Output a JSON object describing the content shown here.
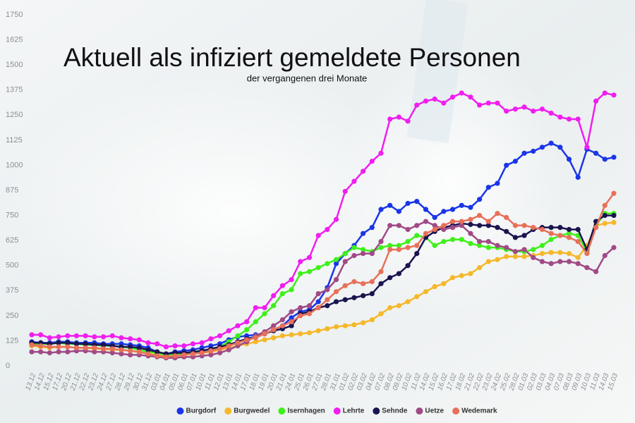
{
  "chart_data": {
    "type": "line",
    "title": "Aktuell als infiziert gemeldete Personen",
    "subtitle": "der vergangenen drei Monate",
    "categories": [
      "13.12",
      "14.12",
      "15.12",
      "17.12",
      "20.12",
      "21.12",
      "22.12",
      "23.12",
      "24.12",
      "27.12",
      "28.12",
      "29.12",
      "30.12",
      "31.12",
      "03.01",
      "04.01",
      "05.01",
      "06.01",
      "07.01",
      "10.01",
      "11.01",
      "12.01",
      "13.01",
      "14.01",
      "17.01",
      "18.01",
      "19.01",
      "20.01",
      "21.01",
      "24.01",
      "25.01",
      "26.01",
      "27.01",
      "28.01",
      "31.01",
      "01.02",
      "02.02",
      "03.02",
      "04.02",
      "07.02",
      "08.02",
      "09.02",
      "10.02",
      "11.02",
      "14.02",
      "15.02",
      "16.02",
      "17.02",
      "18.02",
      "21.02",
      "22.02",
      "23.02",
      "24.02",
      "25.02",
      "28.02",
      "01.03",
      "02.03",
      "03.03",
      "04.03",
      "07.03",
      "08.03",
      "09.03",
      "10.03",
      "11.03",
      "14.03",
      "15.03"
    ],
    "series": [
      {
        "name": "Burgdorf",
        "color": "#1a35e8",
        "values": [
          120,
          115,
          115,
          120,
          120,
          115,
          115,
          115,
          110,
          110,
          110,
          105,
          100,
          90,
          70,
          60,
          70,
          75,
          80,
          90,
          100,
          110,
          130,
          145,
          150,
          155,
          160,
          180,
          200,
          240,
          270,
          280,
          320,
          390,
          510,
          560,
          600,
          660,
          690,
          780,
          800,
          770,
          810,
          820,
          780,
          740,
          770,
          780,
          800,
          790,
          830,
          890,
          910,
          1000,
          1020,
          1060,
          1070,
          1090,
          1110,
          1090,
          1030,
          940,
          1080,
          1060,
          1030,
          1040
        ]
      },
      {
        "name": "Burgwedel",
        "color": "#f5b82a",
        "values": [
          100,
          95,
          90,
          95,
          95,
          90,
          90,
          85,
          85,
          80,
          80,
          75,
          70,
          60,
          55,
          50,
          55,
          55,
          60,
          65,
          70,
          80,
          90,
          100,
          110,
          120,
          130,
          140,
          150,
          155,
          160,
          165,
          175,
          185,
          195,
          200,
          205,
          215,
          230,
          260,
          290,
          300,
          320,
          345,
          370,
          395,
          410,
          440,
          450,
          460,
          490,
          520,
          530,
          545,
          545,
          545,
          550,
          560,
          565,
          565,
          560,
          540,
          600,
          700,
          710,
          715
        ]
      },
      {
        "name": "Isernhagen",
        "color": "#3ef01a",
        "values": [
          110,
          110,
          110,
          115,
          110,
          110,
          105,
          105,
          100,
          100,
          95,
          90,
          80,
          70,
          65,
          55,
          60,
          60,
          65,
          70,
          80,
          95,
          120,
          150,
          180,
          220,
          260,
          300,
          360,
          380,
          460,
          470,
          490,
          510,
          530,
          560,
          590,
          580,
          570,
          590,
          600,
          600,
          620,
          650,
          640,
          600,
          620,
          630,
          630,
          610,
          600,
          590,
          590,
          580,
          570,
          570,
          580,
          600,
          630,
          650,
          660,
          650,
          570,
          700,
          760,
          760
        ]
      },
      {
        "name": "Lehrte",
        "color": "#f01ef0",
        "values": [
          155,
          155,
          140,
          145,
          150,
          150,
          150,
          145,
          145,
          150,
          140,
          135,
          130,
          115,
          110,
          95,
          100,
          100,
          110,
          115,
          135,
          150,
          175,
          200,
          220,
          290,
          290,
          350,
          400,
          430,
          520,
          540,
          650,
          680,
          730,
          870,
          920,
          970,
          1020,
          1060,
          1230,
          1240,
          1220,
          1300,
          1320,
          1330,
          1310,
          1340,
          1360,
          1340,
          1300,
          1310,
          1310,
          1270,
          1280,
          1290,
          1270,
          1280,
          1260,
          1240,
          1230,
          1230,
          1090,
          1320,
          1360,
          1350
        ]
      },
      {
        "name": "Sehnde",
        "color": "#1a1450",
        "values": [
          115,
          115,
          110,
          115,
          115,
          110,
          110,
          105,
          105,
          100,
          95,
          95,
          90,
          80,
          70,
          60,
          65,
          65,
          70,
          75,
          85,
          95,
          105,
          120,
          135,
          145,
          160,
          175,
          185,
          200,
          260,
          270,
          290,
          300,
          320,
          330,
          340,
          350,
          360,
          410,
          440,
          460,
          500,
          560,
          640,
          670,
          690,
          700,
          710,
          705,
          700,
          700,
          690,
          670,
          640,
          650,
          680,
          690,
          690,
          690,
          680,
          680,
          580,
          720,
          750,
          750
        ]
      },
      {
        "name": "Uetze",
        "color": "#a04a86",
        "values": [
          70,
          70,
          65,
          70,
          70,
          75,
          75,
          70,
          70,
          65,
          60,
          55,
          55,
          50,
          45,
          40,
          40,
          45,
          45,
          50,
          55,
          65,
          80,
          100,
          120,
          150,
          170,
          200,
          230,
          270,
          290,
          300,
          360,
          380,
          430,
          520,
          550,
          560,
          560,
          620,
          700,
          700,
          680,
          700,
          720,
          700,
          680,
          690,
          700,
          660,
          620,
          620,
          600,
          590,
          570,
          580,
          540,
          520,
          510,
          520,
          520,
          510,
          490,
          470,
          550,
          590
        ]
      },
      {
        "name": "Wedemark",
        "color": "#e8705a",
        "values": [
          105,
          100,
          95,
          95,
          95,
          90,
          90,
          90,
          85,
          85,
          80,
          75,
          70,
          60,
          50,
          45,
          50,
          55,
          60,
          65,
          75,
          85,
          100,
          115,
          130,
          140,
          160,
          180,
          200,
          220,
          250,
          260,
          290,
          330,
          370,
          400,
          420,
          410,
          420,
          470,
          580,
          580,
          590,
          600,
          660,
          680,
          700,
          720,
          720,
          730,
          750,
          720,
          760,
          740,
          700,
          700,
          690,
          680,
          660,
          650,
          640,
          620,
          560,
          690,
          800,
          860
        ]
      }
    ],
    "ylim": [
      0,
      1750
    ],
    "yticks": [
      0,
      125,
      250,
      375,
      500,
      625,
      750,
      875,
      1000,
      1125,
      1250,
      1375,
      1500,
      1625,
      1750
    ],
    "grid": false
  }
}
